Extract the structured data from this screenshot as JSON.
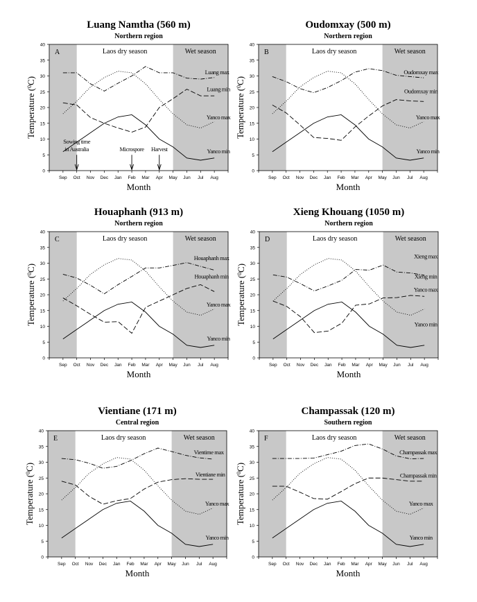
{
  "chart_data": [
    {
      "type": "line",
      "panel": "A",
      "title": "Luang Namtha (560 m)",
      "subtitle": "Northern region",
      "xlabel": "Month",
      "ylabel_prefix": "Temperature (",
      "ylabel_sup": "0",
      "ylabel_suffix": "C)",
      "ylim": [
        0,
        40
      ],
      "yticks": [
        0,
        5,
        10,
        15,
        20,
        25,
        30,
        35,
        40
      ],
      "categories": [
        "Sep",
        "Oct",
        "Nov",
        "Dec",
        "Jan",
        "Feb",
        "Mar",
        "Apr",
        "May",
        "Jun",
        "Jul",
        "Aug"
      ],
      "dry_label": "Laos dry season",
      "wet_label": "Wet season",
      "shaded": [
        "Sep",
        "May-Aug"
      ],
      "series": [
        {
          "name": "Luang max",
          "style": "dashdot",
          "values": [
            31,
            31,
            27.5,
            25.2,
            27.7,
            30,
            33,
            31,
            31,
            29.3,
            29,
            29.5
          ]
        },
        {
          "name": "Luang min",
          "style": "dash",
          "values": [
            21.5,
            20.8,
            16.8,
            15,
            13.5,
            12.2,
            13.8,
            20,
            22.8,
            25.8,
            23.7,
            23.7
          ]
        },
        {
          "name": "Yanco max",
          "style": "dotted",
          "values": [
            18,
            22,
            26.5,
            29.5,
            31.5,
            31,
            27.5,
            22.5,
            18,
            14.5,
            13.5,
            15.5
          ]
        },
        {
          "name": "Yanco min",
          "style": "solid",
          "values": [
            6,
            9,
            12,
            15,
            17,
            17.7,
            14.5,
            10,
            7.5,
            4,
            3.3,
            4
          ]
        }
      ],
      "annotations": [
        {
          "text": "Sowing time in Australia",
          "month": "Oct"
        },
        {
          "text": "Microspore",
          "month": "Feb"
        },
        {
          "text": "Harvest",
          "month": "Apr"
        }
      ]
    },
    {
      "type": "line",
      "panel": "B",
      "title": "Oudomxay (500 m)",
      "subtitle": "Northern region",
      "xlabel": "Month",
      "ylabel_prefix": "Temperature (",
      "ylabel_sup": "0",
      "ylabel_suffix": "C)",
      "ylim": [
        0,
        40
      ],
      "yticks": [
        0,
        5,
        10,
        15,
        20,
        25,
        30,
        35,
        40
      ],
      "categories": [
        "Sep",
        "Oct",
        "Nov",
        "Dec",
        "Jan",
        "Feb",
        "Mar",
        "Apr",
        "May",
        "Jun",
        "Jul",
        "Aug"
      ],
      "dry_label": "Laos dry season",
      "wet_label": "Wet season",
      "shaded": [
        "Sep",
        "May-Aug"
      ],
      "series": [
        {
          "name": "Oudomxay max",
          "style": "dashdot",
          "values": [
            29.8,
            28.2,
            26,
            24.7,
            26.3,
            28.5,
            31.2,
            32.3,
            31.7,
            30.2,
            29.8,
            29.4
          ]
        },
        {
          "name": "Oudomxay min",
          "style": "dash",
          "values": [
            20.8,
            18.3,
            14.5,
            10.5,
            10.2,
            9.6,
            13.8,
            17.3,
            20.5,
            22.5,
            22.1,
            21.9
          ]
        },
        {
          "name": "Yanco max",
          "style": "dotted",
          "values": [
            18,
            22,
            26.5,
            29.5,
            31.5,
            31,
            27.5,
            22.5,
            18,
            14.5,
            13.5,
            15.5
          ]
        },
        {
          "name": "Yanco min",
          "style": "solid",
          "values": [
            6,
            9,
            12,
            15,
            17,
            17.7,
            14.5,
            10,
            7.5,
            4,
            3.3,
            4
          ]
        }
      ],
      "annotations": []
    },
    {
      "type": "line",
      "panel": "C",
      "title": "Houaphanh (913 m)",
      "subtitle": "Northern region",
      "xlabel": "Month",
      "ylabel_prefix": "Temperature (",
      "ylabel_sup": "0",
      "ylabel_suffix": "C)",
      "ylim": [
        0,
        40
      ],
      "yticks": [
        0,
        5,
        10,
        15,
        20,
        25,
        30,
        35,
        40
      ],
      "categories": [
        "Sep",
        "Oct",
        "Nov",
        "Dec",
        "Jan",
        "Feb",
        "Mar",
        "Apr",
        "May",
        "Jun",
        "Jul",
        "Aug"
      ],
      "dry_label": "Laos dry season",
      "wet_label": "Wet season",
      "shaded": [
        "Sep",
        "May-Aug"
      ],
      "series": [
        {
          "name": "Houaphanh max",
          "style": "dashdot",
          "values": [
            26.5,
            25.3,
            23,
            20.3,
            23.2,
            25.8,
            28.5,
            28.5,
            29.3,
            30.2,
            29,
            27.8
          ]
        },
        {
          "name": "Houaphanh min",
          "style": "dash",
          "values": [
            19,
            16.5,
            13.8,
            11.3,
            11.5,
            7.8,
            16,
            18,
            20,
            22,
            23.2,
            21
          ]
        },
        {
          "name": "Yanco max",
          "style": "dotted",
          "values": [
            18,
            22,
            26.5,
            29.5,
            31.5,
            31,
            27.5,
            22.5,
            18,
            14.5,
            13.5,
            15.5
          ]
        },
        {
          "name": "Yanco min",
          "style": "solid",
          "values": [
            6,
            9,
            12,
            15,
            17,
            17.7,
            14.5,
            10,
            7.5,
            4,
            3.3,
            4
          ]
        }
      ],
      "annotations": []
    },
    {
      "type": "line",
      "panel": "D",
      "title": "Xieng Khouang (1050 m)",
      "subtitle": "Northern region",
      "xlabel": "Month",
      "ylabel_prefix": "Temperature (",
      "ylabel_sup": "0",
      "ylabel_suffix": "C)",
      "ylim": [
        0,
        40
      ],
      "yticks": [
        0,
        5,
        10,
        15,
        20,
        25,
        30,
        35,
        40
      ],
      "categories": [
        "Sep",
        "Oct",
        "Nov",
        "Dec",
        "Jan",
        "Feb",
        "Mar",
        "Apr",
        "May",
        "Jun",
        "Jul",
        "Aug"
      ],
      "dry_label": "Laos dry season",
      "wet_label": "Wet season",
      "shaded": [
        "Sep",
        "May-Aug"
      ],
      "series": [
        {
          "name": "Xieng max",
          "style": "dashdot",
          "values": [
            26.3,
            25.6,
            23.5,
            21.2,
            22.8,
            24.6,
            28,
            27.8,
            29.4,
            27.2,
            26.9,
            26.2
          ]
        },
        {
          "name": "Xieng min",
          "style": "dash",
          "values": [
            18,
            16.3,
            13,
            8,
            8.5,
            11,
            16.7,
            17.1,
            19,
            19.1,
            19.8,
            19.5
          ]
        },
        {
          "name": "Yanco max",
          "style": "dotted",
          "values": [
            18,
            22,
            26.5,
            29.5,
            31.5,
            31,
            27.5,
            22.5,
            18,
            14.5,
            13.5,
            15.5
          ]
        },
        {
          "name": "Yanco min",
          "style": "solid",
          "values": [
            6,
            9,
            12,
            15,
            17,
            17.7,
            14.5,
            10,
            7.5,
            4,
            3.3,
            4
          ]
        }
      ],
      "annotations": []
    },
    {
      "type": "line",
      "panel": "E",
      "title": "Vientiane (171 m)",
      "subtitle": "Central region",
      "xlabel": "Month",
      "ylabel_prefix": "Temperature (",
      "ylabel_sup": "0",
      "ylabel_suffix": "C)",
      "ylim": [
        0,
        40
      ],
      "yticks": [
        0,
        5,
        10,
        15,
        20,
        25,
        30,
        35,
        40
      ],
      "categories": [
        "Sep",
        "Oct",
        "Nov",
        "Dec",
        "Jan",
        "Feb",
        "Mar",
        "Apr",
        "May",
        "Jun",
        "Jul",
        "Aug"
      ],
      "dry_label": "Laos dry season",
      "wet_label": "Wet season",
      "shaded": [
        "Sep",
        "May-Aug"
      ],
      "series": [
        {
          "name": "Vientime max",
          "style": "dashdot",
          "values": [
            31.2,
            30.8,
            29.7,
            28.1,
            28.7,
            30.5,
            32.7,
            34.5,
            33.4,
            32.2,
            31.4,
            31
          ]
        },
        {
          "name": "Vientiane min",
          "style": "dash",
          "values": [
            24,
            22.8,
            19.2,
            16.7,
            17.8,
            18.5,
            21.5,
            23.7,
            24.5,
            24.8,
            24.6,
            24.6
          ]
        },
        {
          "name": "Yanco max",
          "style": "dotted",
          "values": [
            18,
            22,
            26.5,
            29.5,
            31.5,
            31,
            27.5,
            22.5,
            18,
            14.5,
            13.5,
            15.5
          ]
        },
        {
          "name": "Yanco min",
          "style": "solid",
          "values": [
            6,
            9,
            12,
            15,
            17,
            17.7,
            14.5,
            10,
            7.5,
            4,
            3.3,
            4
          ]
        }
      ],
      "annotations": []
    },
    {
      "type": "line",
      "panel": "F",
      "title": "Champassak (120 m)",
      "subtitle": "Southern region",
      "xlabel": "Month",
      "ylabel_prefix": "Temperature (",
      "ylabel_sup": "0",
      "ylabel_suffix": "C)",
      "ylim": [
        0,
        40
      ],
      "yticks": [
        0,
        5,
        10,
        15,
        20,
        25,
        30,
        35,
        40
      ],
      "categories": [
        "Sep",
        "Oct",
        "Nov",
        "Dec",
        "Jan",
        "Feb",
        "Mar",
        "Apr",
        "May",
        "Jun",
        "Jul",
        "Aug"
      ],
      "dry_label": "Laos dry season",
      "wet_label": "Wet season",
      "shaded": [
        "Sep",
        "May-Aug"
      ],
      "series": [
        {
          "name": "Champassak max",
          "style": "dashdot",
          "values": [
            31.2,
            31.2,
            31.2,
            31.3,
            32.4,
            33.5,
            35.3,
            35.8,
            34.2,
            32,
            31.1,
            31.2
          ]
        },
        {
          "name": "Champassak min",
          "style": "dash",
          "values": [
            22.4,
            22.4,
            20.5,
            18.5,
            18.3,
            20.7,
            23.2,
            25,
            25,
            24.5,
            24,
            24
          ]
        },
        {
          "name": "Yanco max",
          "style": "dotted",
          "values": [
            18,
            22,
            26.5,
            29.5,
            31.5,
            31,
            27.5,
            22.5,
            18,
            14.5,
            13.5,
            15.5
          ]
        },
        {
          "name": "Yanco min",
          "style": "solid",
          "values": [
            6,
            9,
            12,
            15,
            17,
            17.7,
            14.5,
            10,
            7.5,
            4,
            3.3,
            4
          ]
        }
      ],
      "annotations": []
    }
  ],
  "colors": {
    "shade": "#c8c8c8",
    "line": "#000000"
  }
}
